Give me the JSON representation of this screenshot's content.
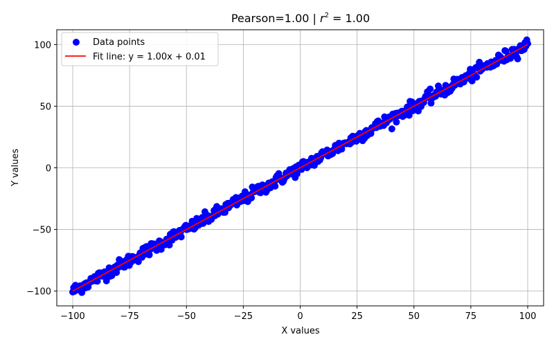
{
  "chart_data": {
    "type": "scatter",
    "title_prefix": "Pearson=1.00 | ",
    "title_r": "r",
    "title_exp": "2",
    "title_suffix": " = 1.00",
    "xlabel": "X values",
    "ylabel": "Y values",
    "xlim": [
      -107,
      107
    ],
    "ylim": [
      -112,
      112
    ],
    "grid": true,
    "legend_position": "top-left",
    "xticks": [
      -100,
      -75,
      -50,
      -25,
      0,
      25,
      50,
      75,
      100
    ],
    "yticks": [
      -100,
      -50,
      0,
      50,
      100
    ],
    "xtick_labels": [
      "−100",
      "−75",
      "−50",
      "−25",
      "0",
      "25",
      "50",
      "75",
      "100"
    ],
    "ytick_labels": [
      "−100",
      "−50",
      "0",
      "50",
      "100"
    ],
    "series": [
      {
        "name": "Data points",
        "kind": "scatter",
        "color": "#0000ff",
        "n_points": 500,
        "x_range": [
          -100,
          100
        ],
        "y_noise": 2.5
      },
      {
        "name": "Fit line",
        "kind": "line",
        "color": "#ff0000",
        "slope": 1.0,
        "intercept": 0.01,
        "x_range": [
          -100,
          100
        ]
      }
    ],
    "legend": [
      {
        "label": "Data points",
        "color": "#0000ff",
        "marker": "circle"
      },
      {
        "label": "Fit line: y = 1.00x + 0.01",
        "color": "#ff0000",
        "marker": "line"
      }
    ]
  }
}
